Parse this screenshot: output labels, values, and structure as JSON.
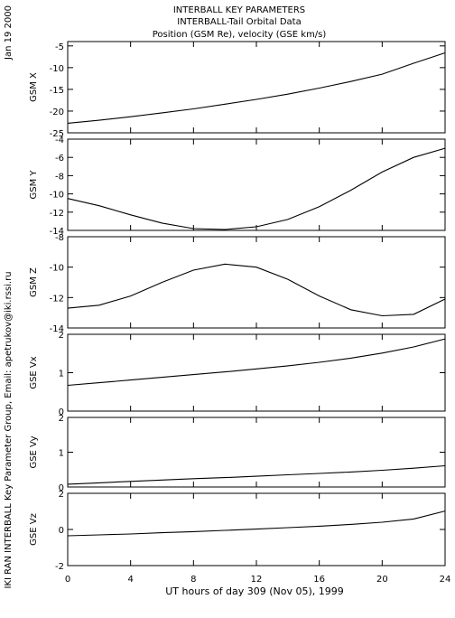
{
  "header": {
    "line1": "INTERBALL KEY PARAMETERS",
    "line2": "INTERBALL-Tail Orbital Data",
    "line3": "Position (GSM Re), velocity (GSE km/s)"
  },
  "side_labels": {
    "date": "Jan 19 2000",
    "credit": "IKI RAN INTERBALL Key Parameter Group, Email: apetrukov@iki.rssi.ru"
  },
  "chart_data": {
    "type": "line",
    "xlabel": "UT hours of day 309 (Nov 05), 1999",
    "xlim": [
      0,
      24
    ],
    "xticks": [
      0,
      4,
      8,
      12,
      16,
      20,
      24
    ],
    "x": [
      0,
      2,
      4,
      6,
      8,
      10,
      12,
      14,
      16,
      18,
      20,
      22,
      24
    ],
    "panels": [
      {
        "ylabel": "GSM X",
        "ylim": [
          -25,
          -4
        ],
        "yticks": [
          -25,
          -20,
          -15,
          -10,
          -5
        ],
        "values": [
          -22.8,
          -22.1,
          -21.3,
          -20.4,
          -19.5,
          -18.4,
          -17.3,
          -16.1,
          -14.7,
          -13.2,
          -11.5,
          -9.0,
          -6.6
        ]
      },
      {
        "ylabel": "GSM Y",
        "ylim": [
          -14,
          -4
        ],
        "yticks": [
          -14,
          -12,
          -10,
          -8,
          -6,
          -4
        ],
        "values": [
          -10.5,
          -11.3,
          -12.3,
          -13.2,
          -13.8,
          -13.9,
          -13.6,
          -12.8,
          -11.4,
          -9.6,
          -7.6,
          -6.0,
          -5.0
        ]
      },
      {
        "ylabel": "GSM Z",
        "ylim": [
          -14,
          -8
        ],
        "yticks": [
          -14,
          -12,
          -10,
          -8
        ],
        "values": [
          -12.7,
          -12.5,
          -11.9,
          -11.0,
          -10.2,
          -9.8,
          -10.0,
          -10.8,
          -11.9,
          -12.8,
          -13.2,
          -13.1,
          -12.1
        ]
      },
      {
        "ylabel": "GSE Vx",
        "ylim": [
          0,
          2
        ],
        "yticks": [
          0,
          1,
          2
        ],
        "values": [
          0.67,
          0.74,
          0.81,
          0.88,
          0.95,
          1.02,
          1.1,
          1.18,
          1.27,
          1.38,
          1.51,
          1.67,
          1.88
        ]
      },
      {
        "ylabel": "GSE Vy",
        "ylim": [
          0,
          2
        ],
        "yticks": [
          0,
          1,
          2
        ],
        "values": [
          0.08,
          0.12,
          0.16,
          0.2,
          0.24,
          0.27,
          0.31,
          0.35,
          0.39,
          0.43,
          0.48,
          0.54,
          0.61
        ]
      },
      {
        "ylabel": "GSE Vz",
        "ylim": [
          -2,
          2
        ],
        "yticks": [
          -2,
          0,
          2
        ],
        "values": [
          -0.35,
          -0.3,
          -0.25,
          -0.18,
          -0.12,
          -0.05,
          0.02,
          0.1,
          0.18,
          0.28,
          0.4,
          0.58,
          1.02
        ]
      }
    ]
  }
}
